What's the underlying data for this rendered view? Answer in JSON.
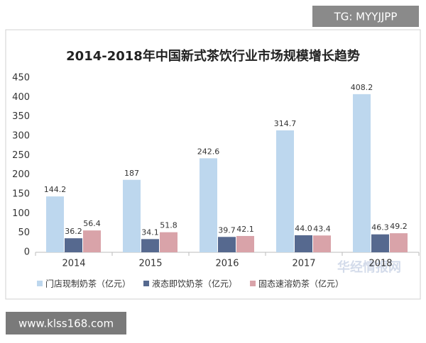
{
  "chart_data": {
    "type": "bar",
    "title": "2014-2018年中国新式茶饮行业市场规模增长趋势",
    "categories": [
      "2014",
      "2015",
      "2016",
      "2017",
      "2018"
    ],
    "series": [
      {
        "name": "门店现制奶茶（亿元）",
        "color": "#bdd7ee",
        "values": [
          144.2,
          187,
          242.6,
          314.7,
          408.2
        ],
        "value_labels": [
          "144.2",
          "187",
          "242.6",
          "314.7",
          "408.2"
        ]
      },
      {
        "name": "液态即饮奶茶（亿元）",
        "color": "#56698f",
        "values": [
          36.2,
          34.1,
          39.7,
          44.0,
          46.3
        ],
        "value_labels": [
          "36.2",
          "34.1",
          "39.7",
          "44.0",
          "46.3"
        ]
      },
      {
        "name": "固态速溶奶茶（亿元）",
        "color": "#d9a3a9",
        "values": [
          56.4,
          51.8,
          42.1,
          43.4,
          49.2
        ],
        "value_labels": [
          "56.4",
          "51.8",
          "42.1",
          "43.4",
          "49.2"
        ]
      }
    ],
    "ylim": [
      0,
      450
    ],
    "yticks": [
      0,
      50,
      100,
      150,
      200,
      250,
      300,
      350,
      400,
      450
    ],
    "grid": false,
    "legend": "bottom"
  },
  "overlays": {
    "tag": "TG: MYYJJPP",
    "site": "www.klss168.com",
    "brand": "华经情报网"
  }
}
